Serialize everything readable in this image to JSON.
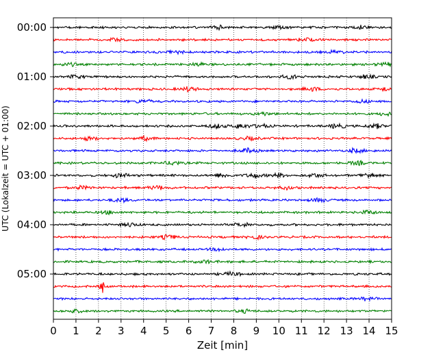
{
  "chart_data": {
    "type": "line",
    "subtype": "seismic-helicorder",
    "title": "",
    "xlabel": "Zeit  [min]",
    "ylabel": "UTC (Lokalzeit = UTC + 01:00)",
    "xlim": [
      0,
      15
    ],
    "x_ticks": [
      "0",
      "1",
      "2",
      "3",
      "4",
      "5",
      "6",
      "7",
      "8",
      "9",
      "10",
      "11",
      "12",
      "13",
      "14",
      "15"
    ],
    "y_ticks": [
      "00:00",
      "01:00",
      "02:00",
      "03:00",
      "04:00",
      "05:00"
    ],
    "grid": "vertical-dotted",
    "legend": "none",
    "trace_colors": [
      "#000000",
      "#ff0000",
      "#0000ff",
      "#008000"
    ],
    "rows_per_hour": 4,
    "minutes_per_row": 15,
    "rows": [
      {
        "start": "00:00",
        "color": "#000000",
        "events": [
          {
            "t": 7.3,
            "amp": 1.4
          },
          {
            "t": 10.0,
            "amp": 1.5
          },
          {
            "t": 13.6,
            "amp": 1.4
          }
        ]
      },
      {
        "start": "00:15",
        "color": "#ff0000",
        "events": [
          {
            "t": 2.8,
            "amp": 1.2
          },
          {
            "t": 11.2,
            "amp": 1.2
          }
        ]
      },
      {
        "start": "00:30",
        "color": "#0000ff",
        "events": [
          {
            "t": 5.5,
            "amp": 1.2
          },
          {
            "t": 12.5,
            "amp": 1.1
          }
        ]
      },
      {
        "start": "00:45",
        "color": "#008000",
        "events": [
          {
            "t": 0.7,
            "amp": 1.2
          },
          {
            "t": 6.4,
            "amp": 1.2
          },
          {
            "t": 14.7,
            "amp": 1.2
          }
        ]
      },
      {
        "start": "01:00",
        "color": "#000000",
        "events": [
          {
            "t": 1.0,
            "amp": 1.2
          },
          {
            "t": 10.5,
            "amp": 1.5
          },
          {
            "t": 13.9,
            "amp": 1.3
          }
        ]
      },
      {
        "start": "01:15",
        "color": "#ff0000",
        "events": [
          {
            "t": 6.0,
            "amp": 1.6
          },
          {
            "t": 11.5,
            "amp": 1.4
          },
          {
            "t": 14.8,
            "amp": 1.3
          }
        ]
      },
      {
        "start": "01:30",
        "color": "#0000ff",
        "events": [
          {
            "t": 4.0,
            "amp": 1.2
          },
          {
            "t": 13.7,
            "amp": 1.2
          }
        ]
      },
      {
        "start": "01:45",
        "color": "#008000",
        "events": [
          {
            "t": 9.3,
            "amp": 1.1
          },
          {
            "t": 14.8,
            "amp": 1.3
          }
        ]
      },
      {
        "start": "02:00",
        "color": "#000000",
        "events": [
          {
            "t": 7.2,
            "amp": 1.6
          },
          {
            "t": 8.3,
            "amp": 1.7
          },
          {
            "t": 9.2,
            "amp": 1.6
          },
          {
            "t": 12.6,
            "amp": 1.6
          },
          {
            "t": 14.3,
            "amp": 1.7
          }
        ]
      },
      {
        "start": "02:15",
        "color": "#ff0000",
        "events": [
          {
            "t": 1.6,
            "amp": 1.2
          },
          {
            "t": 4.1,
            "amp": 1.4
          },
          {
            "t": 8.7,
            "amp": 1.2
          }
        ]
      },
      {
        "start": "02:30",
        "color": "#0000ff",
        "events": [
          {
            "t": 8.6,
            "amp": 1.7
          },
          {
            "t": 13.4,
            "amp": 1.6
          }
        ]
      },
      {
        "start": "02:45",
        "color": "#008000",
        "events": [
          {
            "t": 5.3,
            "amp": 1.5
          },
          {
            "t": 13.5,
            "amp": 1.4
          }
        ]
      },
      {
        "start": "03:00",
        "color": "#000000",
        "events": [
          {
            "t": 3.0,
            "amp": 1.5
          },
          {
            "t": 7.5,
            "amp": 1.6
          },
          {
            "t": 8.9,
            "amp": 1.8
          },
          {
            "t": 10.0,
            "amp": 1.6
          },
          {
            "t": 11.6,
            "amp": 1.5
          },
          {
            "t": 14.0,
            "amp": 1.9
          }
        ]
      },
      {
        "start": "03:15",
        "color": "#ff0000",
        "events": [
          {
            "t": 1.3,
            "amp": 1.3
          },
          {
            "t": 4.6,
            "amp": 1.5
          },
          {
            "t": 10.3,
            "amp": 1.2
          }
        ]
      },
      {
        "start": "03:30",
        "color": "#0000ff",
        "events": [
          {
            "t": 3.0,
            "amp": 1.4
          },
          {
            "t": 11.8,
            "amp": 1.5
          }
        ]
      },
      {
        "start": "03:45",
        "color": "#008000",
        "events": [
          {
            "t": 2.4,
            "amp": 1.2
          },
          {
            "t": 14.0,
            "amp": 1.3
          }
        ]
      },
      {
        "start": "04:00",
        "color": "#000000",
        "events": [
          {
            "t": 3.4,
            "amp": 1.3
          },
          {
            "t": 8.4,
            "amp": 1.3
          }
        ]
      },
      {
        "start": "04:15",
        "color": "#ff0000",
        "events": [
          {
            "t": 5.1,
            "amp": 1.6
          },
          {
            "t": 9.0,
            "amp": 1.2
          }
        ]
      },
      {
        "start": "04:30",
        "color": "#0000ff",
        "events": [
          {
            "t": 7.3,
            "amp": 1.1
          }
        ]
      },
      {
        "start": "04:45",
        "color": "#008000",
        "events": [
          {
            "t": 6.7,
            "amp": 1.1
          }
        ]
      },
      {
        "start": "05:00",
        "color": "#000000",
        "events": [
          {
            "t": 7.9,
            "amp": 1.4
          }
        ]
      },
      {
        "start": "05:15",
        "color": "#ff0000",
        "events": [
          {
            "t": 2.15,
            "amp": 6.5
          }
        ]
      },
      {
        "start": "05:30",
        "color": "#0000ff",
        "events": [
          {
            "t": 13.9,
            "amp": 1.2
          }
        ]
      },
      {
        "start": "05:45",
        "color": "#008000",
        "events": [
          {
            "t": 1.0,
            "amp": 1.2
          },
          {
            "t": 8.5,
            "amp": 1.1
          }
        ]
      }
    ]
  }
}
